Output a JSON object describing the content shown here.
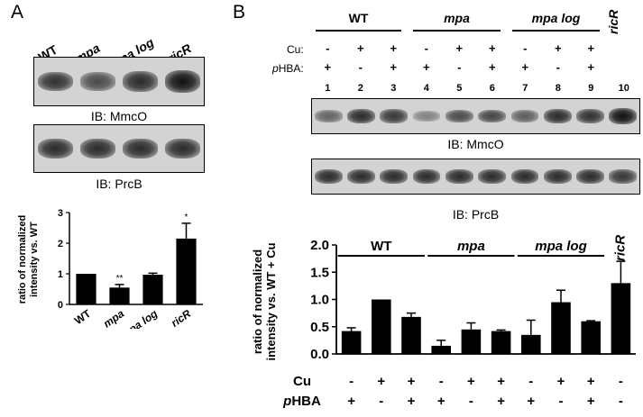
{
  "panelA": {
    "letter": "A",
    "lane_labels": [
      "WT",
      "mpa",
      "mpa log",
      "ricR"
    ],
    "lane_italic": [
      false,
      true,
      true,
      true
    ],
    "blot1_label": "IB: MmcO",
    "blot2_label": "IB: PrcB",
    "band_intensity_mmco": [
      0.75,
      0.55,
      0.8,
      1.0
    ],
    "band_intensity_prcb": [
      0.8,
      0.8,
      0.8,
      0.8
    ]
  },
  "panelB": {
    "letter": "B",
    "group_labels": [
      "WT",
      "mpa",
      "mpa log"
    ],
    "group_italic": [
      false,
      true,
      true
    ],
    "ricR_label": "ricR",
    "row_cu_label": "Cu:",
    "row_phba_prefix": "p",
    "row_phba_label": "HBA:",
    "cu_symbols": [
      "-",
      "+",
      "+",
      "-",
      "+",
      "+",
      "-",
      "+",
      "+"
    ],
    "phba_symbols": [
      "+",
      "-",
      "+",
      "+",
      "-",
      "+",
      "+",
      "-",
      "+"
    ],
    "lane_numbers": [
      "1",
      "2",
      "3",
      "4",
      "5",
      "6",
      "7",
      "8",
      "9",
      "10"
    ],
    "blot1_label": "IB: MmcO",
    "blot2_label": "IB: PrcB",
    "band_intensity_mmco": [
      0.35,
      0.8,
      0.7,
      0.1,
      0.55,
      0.6,
      0.4,
      0.8,
      0.75,
      1.0
    ],
    "band_intensity_prcb": [
      0.8,
      0.8,
      0.8,
      0.8,
      0.8,
      0.8,
      0.8,
      0.8,
      0.8,
      0.7
    ]
  },
  "chart_data": [
    {
      "type": "bar",
      "ylabel": "ratio of normalized intensity vs. WT",
      "categories": [
        "WT",
        "mpa",
        "mpa log",
        "ricR"
      ],
      "categories_italic": [
        false,
        true,
        true,
        true
      ],
      "values": [
        1.0,
        0.55,
        0.97,
        2.15
      ],
      "errors": [
        0.0,
        0.1,
        0.05,
        0.5
      ],
      "significance": [
        "",
        "**",
        "",
        "*"
      ],
      "ylim": [
        0,
        3
      ],
      "yticks": [
        "0",
        "1",
        "2",
        "3"
      ],
      "bar_color": "#000000"
    },
    {
      "type": "bar",
      "ylabel": "ratio of normalized intensity vs. WT + Cu",
      "values": [
        0.42,
        1.0,
        0.68,
        0.15,
        0.45,
        0.42,
        0.35,
        0.95,
        0.6,
        1.3
      ],
      "errors": [
        0.06,
        0.0,
        0.07,
        0.1,
        0.12,
        0.02,
        0.27,
        0.22,
        0.01,
        0.4
      ],
      "ylim": [
        0,
        2.0
      ],
      "yticks": [
        "0.0",
        "0.5",
        "1.0",
        "1.5",
        "2.0"
      ],
      "group_labels": [
        "WT",
        "mpa",
        "mpa log",
        "ricR"
      ],
      "group_italic": [
        false,
        true,
        true,
        true
      ],
      "cu_row_label": "Cu",
      "phba_row_prefix": "p",
      "phba_row_label": "HBA",
      "cu_symbols": [
        "-",
        "+",
        "+",
        "-",
        "+",
        "+",
        "-",
        "+",
        "+",
        "-"
      ],
      "phba_symbols": [
        "+",
        "-",
        "+",
        "+",
        "-",
        "+",
        "+",
        "-",
        "+",
        "-"
      ],
      "bar_color": "#000000"
    }
  ]
}
